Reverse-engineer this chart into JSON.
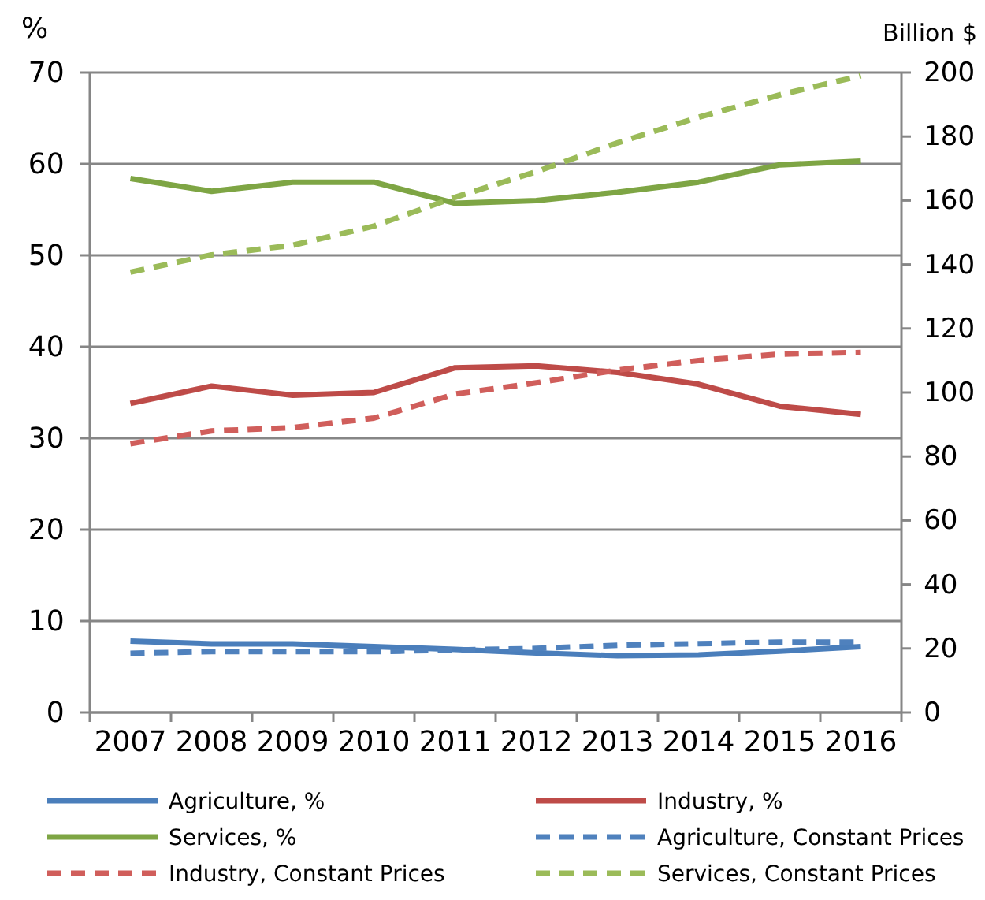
{
  "chart_data": {
    "type": "line",
    "ylabel": "%",
    "y2label": "Billion $",
    "categories": [
      "2007",
      "2008",
      "2009",
      "2010",
      "2011",
      "2012",
      "2013",
      "2014",
      "2015",
      "2016"
    ],
    "ylim": [
      0,
      70
    ],
    "yticks": [
      0,
      10,
      20,
      30,
      40,
      50,
      60,
      70
    ],
    "y2lim": [
      0,
      200
    ],
    "y2ticks": [
      0,
      20,
      40,
      60,
      80,
      100,
      120,
      140,
      160,
      180,
      200
    ],
    "grid": "y",
    "legend": "bottom",
    "series": [
      {
        "name": "Agriculture, %",
        "color": "#4a7ebb",
        "line_style": "solid",
        "values": [
          7.8,
          7.5,
          7.5,
          7.2,
          6.9,
          6.5,
          6.2,
          6.3,
          6.7,
          7.2
        ]
      },
      {
        "name": "Industry, %",
        "color": "#be4b48",
        "line_style": "solid",
        "values": [
          33.8,
          35.7,
          34.7,
          35.0,
          37.7,
          37.9,
          37.2,
          35.9,
          33.5,
          32.6
        ]
      },
      {
        "name": "Services, %",
        "color": "#7ea544",
        "line_style": "solid",
        "values": [
          58.4,
          57.0,
          58.0,
          58.0,
          55.7,
          56.0,
          56.9,
          58.0,
          59.9,
          60.3
        ]
      },
      {
        "name": "Agriculture, Constant Prices",
        "color": "#4f81bd",
        "line_style": "dashed",
        "axis": "y2",
        "values": [
          18.5,
          19,
          19,
          19,
          19.5,
          20,
          21,
          21.5,
          22,
          22
        ]
      },
      {
        "name": "Industry, Constant Prices",
        "color": "#d05e5b",
        "line_style": "dashed",
        "axis": "y2",
        "values": [
          84,
          88,
          89,
          92,
          99.5,
          103,
          107,
          110,
          112,
          112.5
        ]
      },
      {
        "name": "Services, Constant Prices",
        "color": "#9bbb59",
        "line_style": "dashed",
        "axis": "y2",
        "values": [
          137.6,
          143,
          146,
          152,
          161,
          169,
          178,
          186,
          193,
          199
        ]
      }
    ]
  }
}
